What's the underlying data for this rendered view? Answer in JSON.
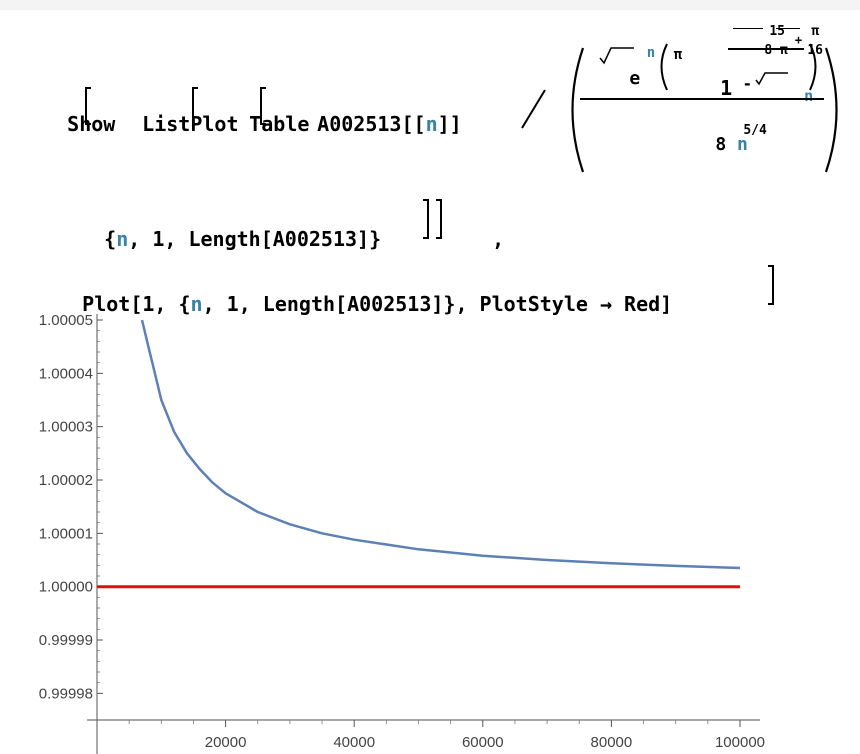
{
  "code": {
    "show": "Show",
    "listplot": "ListPlot",
    "table": "Table",
    "seq": "A002513",
    "index_open": "[[",
    "index_var": "n",
    "index_close": "]]",
    "div": "/",
    "e": "e",
    "sqrt_var": "n",
    "pi": "π",
    "one": "1",
    "minus": "-",
    "num15": "15",
    "den8pi": "8 π",
    "plus": "+",
    "pi_small": "π",
    "den16": "16",
    "denom_coef": "8",
    "denom_var": "n",
    "denom_exp": "5/4",
    "comma": ",",
    "iter_open": "{",
    "iter_var": "n",
    "iter_rest": ", 1, Length[A002513]}",
    "line3_plot": "Plot[1, {",
    "line3_var": "n",
    "line3_rest": ", 1, Length[A002513]}, PlotStyle → Red]"
  },
  "chart_data": {
    "type": "line",
    "xlim": [
      0,
      100000
    ],
    "ylim": [
      0.999975,
      1.00005
    ],
    "x_ticks": [
      20000,
      40000,
      60000,
      80000,
      100000
    ],
    "x_tick_labels": [
      "20000",
      "40000",
      "60000",
      "80000",
      "100000"
    ],
    "y_ticks": [
      0.99998,
      0.99999,
      1.0,
      1.00001,
      1.00002,
      1.00003,
      1.00004,
      1.00005
    ],
    "y_tick_labels": [
      "0.99998",
      "0.99999",
      "1.00000",
      "1.00001",
      "1.00002",
      "1.00003",
      "1.00004",
      "1.00005"
    ],
    "series": [
      {
        "color": "#5e81b5",
        "x": [
          7000,
          8000,
          9000,
          10000,
          12000,
          14000,
          16000,
          18000,
          20000,
          25000,
          30000,
          35000,
          40000,
          50000,
          60000,
          70000,
          80000,
          90000,
          100000
        ],
        "y": [
          1.00005,
          1.000045,
          1.00004,
          1.000035,
          1.000029,
          1.000025,
          1.000022,
          1.0000195,
          1.0000175,
          1.000014,
          1.0000117,
          1.00001,
          1.0000088,
          1.000007,
          1.0000058,
          1.000005,
          1.0000044,
          1.0000039,
          1.0000035
        ]
      },
      {
        "color": "#e01010",
        "x": [
          0,
          100000
        ],
        "y": [
          1.0,
          1.0
        ]
      }
    ]
  }
}
